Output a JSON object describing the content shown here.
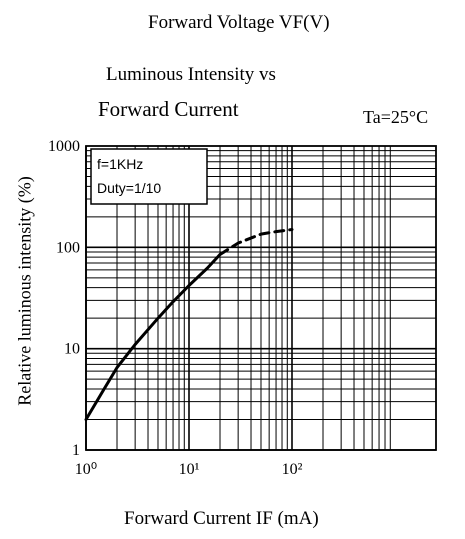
{
  "top_label": "Forward Voltage  VF(V)",
  "chart_data": {
    "type": "line",
    "title_line1": "Luminous Intensity vs",
    "title_line2": "Forward Current",
    "condition": "Ta=25°C",
    "xlabel": "Forward Current   IF (mA)",
    "ylabel": "Relative luminous intensity  (%)",
    "x_scale": "log",
    "y_scale": "log",
    "xlim": [
      1,
      500
    ],
    "ylim": [
      1,
      1000
    ],
    "x_tick_labels": [
      "10⁰",
      "10¹",
      "10²"
    ],
    "y_tick_labels": [
      "1",
      "10",
      "100",
      "1000"
    ],
    "grid": true,
    "legend_box": [
      "f=1KHz",
      "Duty=1/10"
    ],
    "series": [
      {
        "style": "solid",
        "x": [
          1,
          1.5,
          2,
          3,
          5,
          7,
          10,
          15,
          20
        ],
        "y": [
          2,
          4,
          6.5,
          11,
          20,
          29,
          42,
          62,
          85
        ]
      },
      {
        "style": "dashed",
        "x": [
          20,
          30,
          50,
          70,
          100
        ],
        "y": [
          85,
          110,
          135,
          143,
          150
        ]
      }
    ]
  }
}
